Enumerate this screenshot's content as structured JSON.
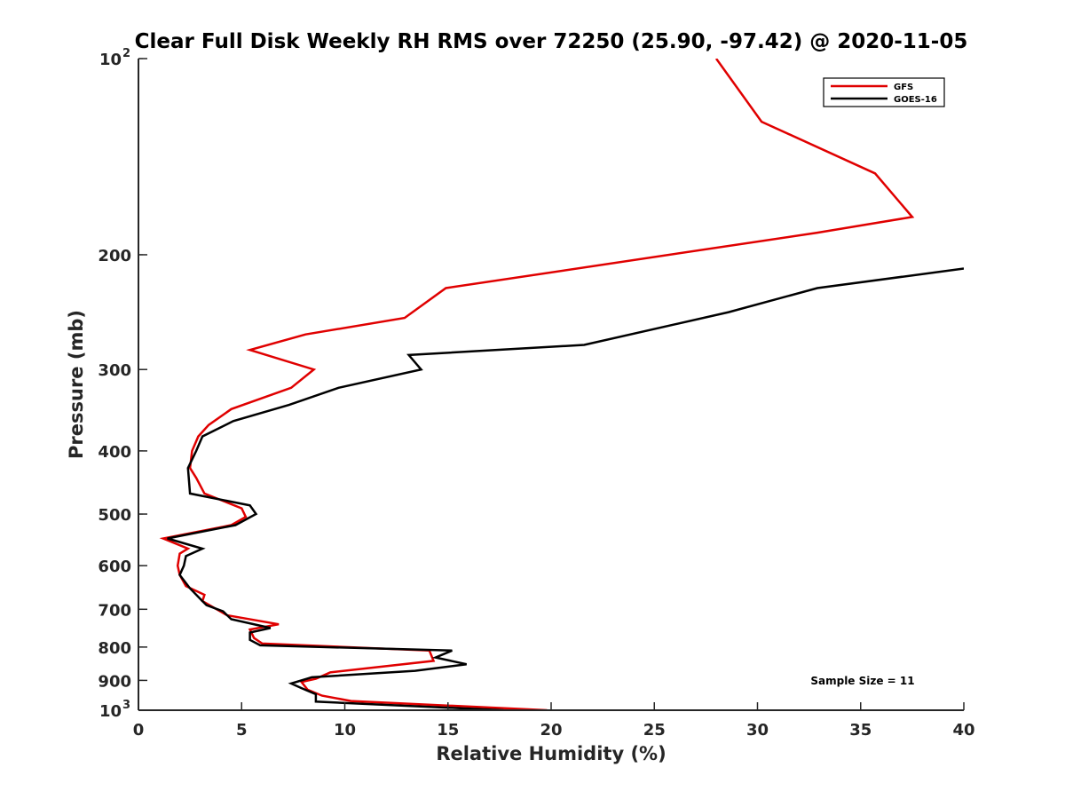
{
  "chart_data": {
    "type": "line",
    "title": "Clear Full Disk Weekly RH RMS over 72250 (25.90, -97.42) @ 2020-11-05",
    "xlabel": "Relative Humidity (%)",
    "ylabel": "Pressure (mb)",
    "xlim": [
      0,
      40
    ],
    "ylim": [
      100,
      1000
    ],
    "y_scale": "log",
    "y_reversed": true,
    "grid": false,
    "legend_position": "top-right",
    "x_ticks": [
      0,
      5,
      10,
      15,
      20,
      25,
      30,
      35,
      40
    ],
    "y_ticks": [
      {
        "value": 100,
        "label": "10",
        "exp": "2"
      },
      {
        "value": 200,
        "label": "200",
        "exp": ""
      },
      {
        "value": 300,
        "label": "300",
        "exp": ""
      },
      {
        "value": 400,
        "label": "400",
        "exp": ""
      },
      {
        "value": 500,
        "label": "500",
        "exp": ""
      },
      {
        "value": 600,
        "label": "600",
        "exp": ""
      },
      {
        "value": 700,
        "label": "700",
        "exp": ""
      },
      {
        "value": 800,
        "label": "800",
        "exp": ""
      },
      {
        "value": 900,
        "label": "900",
        "exp": ""
      },
      {
        "value": 1000,
        "label": "10",
        "exp": "3"
      }
    ],
    "series": [
      {
        "name": "GFS",
        "color": "#e00000",
        "points": [
          [
            28.0,
            100
          ],
          [
            30.2,
            125
          ],
          [
            35.7,
            150
          ],
          [
            37.5,
            175
          ],
          [
            32.9,
            185
          ],
          [
            14.9,
            225
          ],
          [
            12.9,
            250
          ],
          [
            8.1,
            265
          ],
          [
            5.4,
            280
          ],
          [
            8.5,
            300
          ],
          [
            7.4,
            320
          ],
          [
            4.5,
            345
          ],
          [
            3.4,
            365
          ],
          [
            2.9,
            380
          ],
          [
            2.6,
            400
          ],
          [
            2.5,
            425
          ],
          [
            2.8,
            440
          ],
          [
            3.2,
            465
          ],
          [
            5.0,
            490
          ],
          [
            5.2,
            505
          ],
          [
            4.5,
            520
          ],
          [
            1.2,
            545
          ],
          [
            2.4,
            565
          ],
          [
            2.0,
            575
          ],
          [
            1.9,
            600
          ],
          [
            2.0,
            620
          ],
          [
            2.3,
            645
          ],
          [
            3.2,
            665
          ],
          [
            3.1,
            680
          ],
          [
            4.3,
            715
          ],
          [
            6.8,
            738
          ],
          [
            5.4,
            752
          ],
          [
            5.6,
            775
          ],
          [
            6.0,
            790
          ],
          [
            14.1,
            810
          ],
          [
            14.3,
            840
          ],
          [
            9.3,
            875
          ],
          [
            8.6,
            895
          ],
          [
            7.9,
            905
          ],
          [
            8.2,
            930
          ],
          [
            8.9,
            950
          ],
          [
            10.3,
            968
          ],
          [
            19.8,
            1000
          ]
        ]
      },
      {
        "name": "GOES-16",
        "color": "#000000",
        "points": [
          [
            40.0,
            210
          ],
          [
            32.9,
            225
          ],
          [
            28.6,
            245
          ],
          [
            21.6,
            275
          ],
          [
            13.1,
            285
          ],
          [
            13.7,
            300
          ],
          [
            9.7,
            320
          ],
          [
            7.3,
            340
          ],
          [
            4.6,
            360
          ],
          [
            3.1,
            380
          ],
          [
            2.8,
            400
          ],
          [
            2.4,
            425
          ],
          [
            2.5,
            465
          ],
          [
            5.4,
            485
          ],
          [
            5.7,
            500
          ],
          [
            4.7,
            520
          ],
          [
            1.4,
            545
          ],
          [
            3.1,
            565
          ],
          [
            2.3,
            580
          ],
          [
            2.2,
            600
          ],
          [
            2.0,
            620
          ],
          [
            2.5,
            650
          ],
          [
            3.1,
            680
          ],
          [
            3.3,
            690
          ],
          [
            4.1,
            705
          ],
          [
            4.5,
            725
          ],
          [
            6.4,
            748
          ],
          [
            5.4,
            760
          ],
          [
            5.4,
            780
          ],
          [
            5.9,
            795
          ],
          [
            15.2,
            810
          ],
          [
            14.4,
            830
          ],
          [
            15.9,
            850
          ],
          [
            13.4,
            870
          ],
          [
            8.4,
            890
          ],
          [
            7.4,
            910
          ],
          [
            7.9,
            925
          ],
          [
            8.6,
            945
          ],
          [
            8.6,
            970
          ],
          [
            17.7,
            1000
          ]
        ]
      }
    ],
    "annotation": "Sample Size = 11"
  }
}
